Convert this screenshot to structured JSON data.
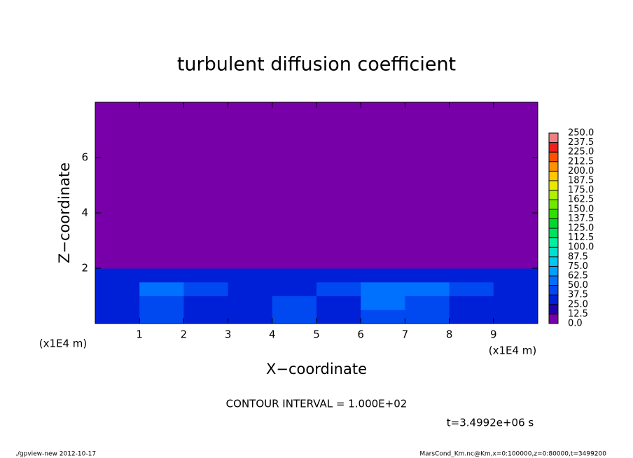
{
  "chart_data": {
    "type": "heatmap",
    "title": "turbulent diffusion coefficient",
    "x_label": "X−coordinate",
    "y_label": "Z−coordinate",
    "x_unit_label": "(x1E4 m)",
    "annotations": [
      "CONTOUR INTERVAL = 1.000E+02",
      "t=3.4992e+06 s"
    ],
    "footer_left": "./gpview-new  2012-10-17",
    "footer_right": "MarsCond_Km.nc@Km,x=0:100000,z=0:80000,t=3499200",
    "xlim": [
      0,
      10
    ],
    "ylim": [
      0,
      8
    ],
    "xticks": [
      1,
      2,
      3,
      4,
      5,
      6,
      7,
      8,
      9
    ],
    "yticks": [
      2,
      4,
      6
    ],
    "xbins": [
      0,
      1,
      2,
      3,
      4,
      5,
      6,
      7,
      8,
      9,
      10
    ],
    "ybins": [
      0,
      0.5,
      1,
      1.5,
      2,
      8
    ],
    "values": [
      [
        35,
        40,
        35,
        35,
        45,
        35,
        40,
        40,
        35,
        35
      ],
      [
        30,
        45,
        35,
        30,
        40,
        35,
        55,
        45,
        35,
        30
      ],
      [
        35,
        55,
        40,
        35,
        35,
        40,
        50,
        60,
        40,
        35
      ],
      [
        30,
        35,
        30,
        30,
        30,
        35,
        30,
        35,
        30,
        30
      ],
      [
        0,
        0,
        0,
        0,
        0,
        0,
        0,
        0,
        0,
        0
      ]
    ],
    "levels": [
      {
        "value": 0,
        "label": "0.0"
      },
      {
        "value": 12.5,
        "label": "12.5"
      },
      {
        "value": 25,
        "label": "25.0"
      },
      {
        "value": 37.5,
        "label": "37.5"
      },
      {
        "value": 50,
        "label": "50.0"
      },
      {
        "value": 62.5,
        "label": "62.5"
      },
      {
        "value": 75,
        "label": "75.0"
      },
      {
        "value": 87.5,
        "label": "87.5"
      },
      {
        "value": 100,
        "label": "100.0"
      },
      {
        "value": 112.5,
        "label": "112.5"
      },
      {
        "value": 125,
        "label": "125.0"
      },
      {
        "value": 137.5,
        "label": "137.5"
      },
      {
        "value": 150,
        "label": "150.0"
      },
      {
        "value": 162.5,
        "label": "162.5"
      },
      {
        "value": 175,
        "label": "175.0"
      },
      {
        "value": 187.5,
        "label": "187.5"
      },
      {
        "value": 200,
        "label": "200.0"
      },
      {
        "value": 212.5,
        "label": "212.5"
      },
      {
        "value": 225,
        "label": "225.0"
      },
      {
        "value": 237.5,
        "label": "237.5"
      },
      {
        "value": 250,
        "label": "250.0"
      }
    ],
    "colors": [
      "#7800a8",
      "#2000b0",
      "#0020d8",
      "#0048f0",
      "#0070ff",
      "#00a0ff",
      "#00c8f0",
      "#00e0d0",
      "#00f0a0",
      "#00e060",
      "#00d830",
      "#30e000",
      "#70e800",
      "#b0f000",
      "#e8e800",
      "#ffc800",
      "#ff9000",
      "#ff5000",
      "#f02020",
      "#f08080"
    ]
  }
}
